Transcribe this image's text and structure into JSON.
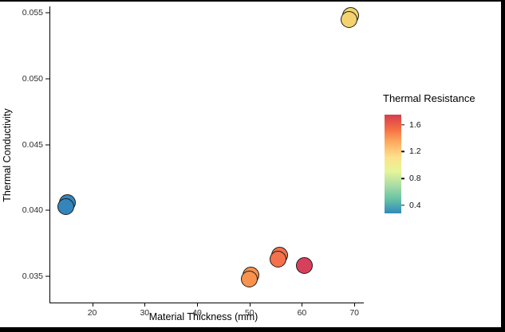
{
  "window": {
    "outer_background": "#000000",
    "plot_background": "#ffffff"
  },
  "chart_data": {
    "type": "scatter",
    "title": "",
    "xlabel": "Material Thickness (mm)",
    "ylabel": "Thermal Conductivity",
    "xlim": [
      12,
      71.8
    ],
    "ylim": [
      0.033,
      0.0555
    ],
    "grid": false,
    "xticks": [
      {
        "v": 20,
        "label": "20"
      },
      {
        "v": 30,
        "label": "30"
      },
      {
        "v": 40,
        "label": "40"
      },
      {
        "v": 50,
        "label": "50"
      },
      {
        "v": 60,
        "label": "60"
      },
      {
        "v": 70,
        "label": "70"
      }
    ],
    "yticks": [
      {
        "v": 0.035,
        "label": "0.035"
      },
      {
        "v": 0.04,
        "label": "0.040"
      },
      {
        "v": 0.045,
        "label": "0.045"
      },
      {
        "v": 0.05,
        "label": "0.050"
      },
      {
        "v": 0.055,
        "label": "0.055"
      }
    ],
    "point_diameter": 21,
    "points": [
      {
        "x": 15,
        "y": 0.0403,
        "color": "#3585bd",
        "overlapping_duplicate": true
      },
      {
        "x": 50,
        "y": 0.0348,
        "color": "#f8924d",
        "overlapping_duplicate": true
      },
      {
        "x": 55.5,
        "y": 0.0363,
        "color": "#f3714b",
        "overlapping_duplicate": true
      },
      {
        "x": 60.5,
        "y": 0.0358,
        "color": "#d6405c",
        "overlapping_duplicate": false
      },
      {
        "x": 69,
        "y": 0.0545,
        "color": "#f3d36f",
        "overlapping_duplicate": true
      }
    ],
    "legend": {
      "title": "Thermal Resistance",
      "position": "right",
      "range_top": 1.75,
      "range_bottom": 0.28,
      "ticks": [
        {
          "v": 1.6,
          "label": "1.6"
        },
        {
          "v": 1.2,
          "label": "1.2"
        },
        {
          "v": 0.8,
          "label": "0.8"
        },
        {
          "v": 0.4,
          "label": "0.4"
        }
      ],
      "gradient_top_to_bottom": [
        "#d53e4f",
        "#f46d43",
        "#fdae61",
        "#fee08b",
        "#e6f598",
        "#abdda4",
        "#66c2a5",
        "#3288bd"
      ]
    }
  }
}
